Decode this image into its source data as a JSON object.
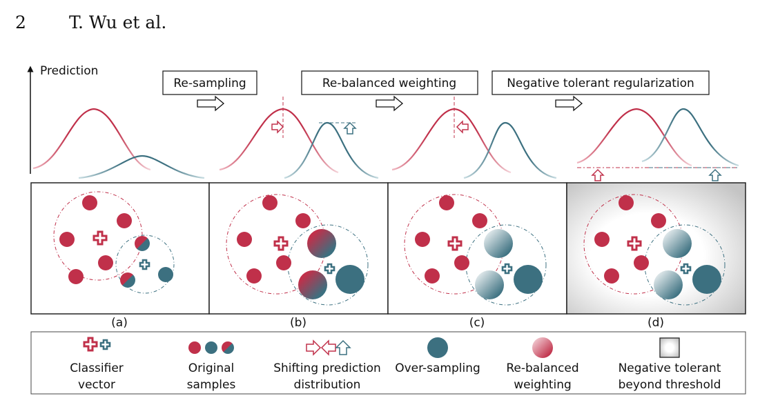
{
  "header": {
    "page_number": "2",
    "authors": "T. Wu et al."
  },
  "figure": {
    "y_axis_label": "Prediction",
    "stages": [
      {
        "label": "Re-sampling"
      },
      {
        "label": "Re-balanced weighting"
      },
      {
        "label": "Negative tolerant regularization"
      }
    ],
    "panels": [
      {
        "label": "(a)"
      },
      {
        "label": "(b)"
      },
      {
        "label": "(c)"
      },
      {
        "label": "(d)"
      }
    ]
  },
  "legend": {
    "items": [
      {
        "line1": "Classifier",
        "line2": "vector"
      },
      {
        "line1": "Original",
        "line2": "samples"
      },
      {
        "line1": "Shifting prediction",
        "line2": "distribution"
      },
      {
        "line1": "Over-sampling",
        "line2": ""
      },
      {
        "line1": "Re-balanced",
        "line2": "weighting"
      },
      {
        "line1": "Negative tolerant",
        "line2": "beyond threshold"
      }
    ]
  },
  "colors": {
    "head": "#c0304a",
    "tail": "#3c7080",
    "frame": "#222222"
  }
}
